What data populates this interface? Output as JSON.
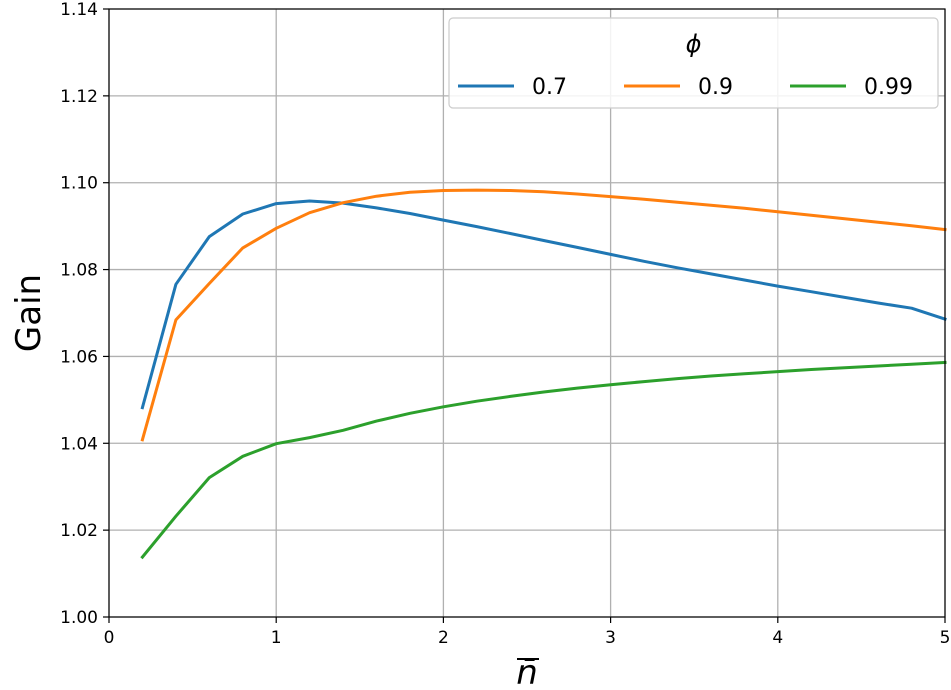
{
  "chart_data": {
    "type": "line",
    "xlabel": "n̄",
    "ylabel": "Gain",
    "xlim": [
      0,
      5
    ],
    "ylim": [
      1.0,
      1.14
    ],
    "xticks": [
      "0",
      "1",
      "2",
      "3",
      "4",
      "5"
    ],
    "yticks": [
      "1.00",
      "1.02",
      "1.04",
      "1.06",
      "1.08",
      "1.10",
      "1.12",
      "1.14"
    ],
    "grid": true,
    "legend": {
      "title": "ϕ",
      "placement": "top-right",
      "ncol": 3
    },
    "x": [
      0.2,
      0.4,
      0.6,
      0.8,
      1.0,
      1.2,
      1.4,
      1.6,
      1.8,
      2.0,
      2.2,
      2.4,
      2.6,
      2.8,
      3.0,
      3.2,
      3.4,
      3.6,
      3.8,
      4.0,
      4.2,
      4.4,
      4.6,
      4.8,
      5.0
    ],
    "series": [
      {
        "name": "0.7",
        "color": "#1f77b4",
        "values": [
          1.0482,
          1.0766,
          1.0876,
          1.0928,
          1.0952,
          1.0958,
          1.0953,
          1.0942,
          1.0929,
          1.0914,
          1.0899,
          1.0883,
          1.0867,
          1.0851,
          1.0835,
          1.0819,
          1.0804,
          1.079,
          1.0776,
          1.0762,
          1.0749,
          1.0736,
          1.0723,
          1.0711,
          1.0686
        ]
      },
      {
        "name": "0.9",
        "color": "#ff7f0e",
        "values": [
          1.0408,
          1.0684,
          1.0768,
          1.085,
          1.0895,
          1.0931,
          1.0954,
          1.0969,
          1.0978,
          1.0982,
          1.0983,
          1.0982,
          1.0979,
          1.0974,
          1.0968,
          1.0962,
          1.0955,
          1.0948,
          1.0941,
          1.0933,
          1.0925,
          1.0917,
          1.0909,
          1.0901,
          1.0892
        ]
      },
      {
        "name": "0.99",
        "color": "#2ca02c",
        "values": [
          1.0138,
          1.0232,
          1.0321,
          1.037,
          1.0399,
          1.0413,
          1.043,
          1.0451,
          1.0469,
          1.0484,
          1.0497,
          1.0508,
          1.0518,
          1.0527,
          1.0535,
          1.0542,
          1.0549,
          1.0555,
          1.056,
          1.0565,
          1.057,
          1.0574,
          1.0578,
          1.0582,
          1.0586
        ]
      }
    ]
  }
}
